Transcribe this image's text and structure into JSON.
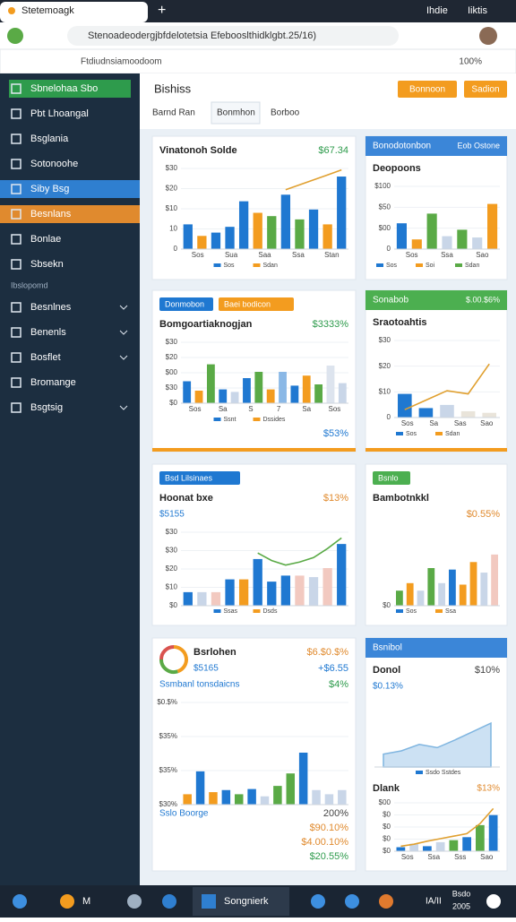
{
  "browser": {
    "tab_title": "Stetemoagk",
    "tab_right": [
      "Ihdie",
      "Iiktis"
    ],
    "address": "Stenoadeodergjbfdelotetsia Efebooslthidklgbt.25/16)",
    "bookmark": "Ftdiudnsiamoodoom",
    "zoom": "100%"
  },
  "sidebar": {
    "groups": [
      {
        "items": [
          {
            "label": "Sbnelohaa Sbo",
            "color": "#2e9b4c"
          },
          {
            "label": "Pbt Lhoangal"
          },
          {
            "label": "Bsglania"
          },
          {
            "label": "Sotonoohe"
          },
          {
            "label": "Siby Bsg",
            "color": "#2f7fd0"
          },
          {
            "label": "Besnlans",
            "color": "#e08a2e"
          },
          {
            "label": "Bonlae"
          },
          {
            "label": "Sbsekn"
          }
        ]
      },
      {
        "label": "Ibslopomd",
        "items": [
          {
            "label": "Besnlnes",
            "expandable": true
          },
          {
            "label": "Benenls",
            "expandable": true
          },
          {
            "label": "Bosflet",
            "expandable": true
          },
          {
            "label": "Bromange"
          },
          {
            "label": "Bsgtsig",
            "expandable": true
          }
        ]
      }
    ]
  },
  "header": {
    "title": "Bishiss",
    "buttons": [
      "Bonnoon",
      "Sadion"
    ],
    "tabs": [
      "Barnd Ran",
      "Bonmhon",
      "Borboo"
    ],
    "active_tab": 1
  },
  "cards": [
    {
      "rows": [
        {
          "text": "Vinatonoh Solde",
          "value": "$67.34",
          "color": "#2e9b4c"
        }
      ],
      "charts": [
        {
          "type": "bar",
          "ylim": [
            0,
            100
          ],
          "values": [
            30,
            16,
            20,
            27,
            58,
            44,
            40,
            66,
            36,
            48,
            30,
            88
          ],
          "colors": [
            "#1f78d1",
            "#f39c1f",
            "#1f78d1",
            "#1f78d1",
            "#1f78d1",
            "#f39c1f",
            "#5aaa46",
            "#1f78d1",
            "#5aaa46",
            "#1f78d1",
            "#f39c1f",
            "#1f78d1"
          ],
          "line": [
            null,
            null,
            null,
            null,
            null,
            null,
            null,
            72,
            78,
            84,
            90,
            96
          ],
          "line_color": "#e0a030",
          "ticks": [
            "$30",
            "$20",
            "$10",
            "10",
            "0"
          ],
          "xlabels": [
            "Sos",
            "Sua",
            "Saa",
            "Ssa",
            "Stan"
          ],
          "legend": [
            "Sos",
            "Sdan"
          ]
        }
      ]
    },
    {
      "header": {
        "text": "Bonodotonbon",
        "right": "Eob Ostone",
        "color": "#3b86d8"
      },
      "rows": [
        {
          "text": "Deopoons"
        }
      ],
      "charts": [
        {
          "type": "bar",
          "ylim": [
            0,
            100
          ],
          "values": [
            40,
            15,
            55,
            20,
            30,
            18,
            70
          ],
          "colors": [
            "#1f78d1",
            "#f39c1f",
            "#5aaa46",
            "#c9d6e8",
            "#5aaa46",
            "#c9d6e8",
            "#f39c1f"
          ],
          "ticks": [
            "$100",
            "$50",
            "$00",
            "0"
          ],
          "xlabels": [
            "Sos",
            "Ssa",
            "Sao"
          ],
          "legend": [
            "Sos",
            "Soi",
            "Sdan"
          ]
        }
      ]
    },
    {
      "chips": [
        {
          "text": "Donmobon",
          "color": "#1f78d1"
        },
        {
          "text": "Baei bodicon",
          "color": "#f39c1f"
        }
      ],
      "rows": [
        {
          "text": "Bomgoartiaknogjan",
          "value": "$3333%",
          "color": "#2e9b4c"
        }
      ],
      "charts": [
        {
          "type": "bar",
          "ylim": [
            0,
            100
          ],
          "values": [
            35,
            20,
            62,
            22,
            18,
            40,
            50,
            22,
            50,
            28,
            44,
            30,
            60,
            32
          ],
          "colors": [
            "#1f78d1",
            "#f39c1f",
            "#5aaa46",
            "#1f78d1",
            "#c9d6e8",
            "#1f78d1",
            "#5aaa46",
            "#f39c1f",
            "#8ab8e6",
            "#1f78d1",
            "#f39c1f",
            "#5aaa46",
            "#dde4ee",
            "#c9d6e8"
          ],
          "ticks": [
            "$30",
            "$20",
            "$00",
            "$30",
            "$0"
          ],
          "xlabels": [
            "Sos",
            "Sa",
            "S",
            "7",
            "Sa",
            "Sos"
          ],
          "legend": [
            "Ssnt",
            "Dssides"
          ]
        }
      ],
      "footer": [
        {
          "text": "",
          "value": "$53%"
        }
      ],
      "accent": "#f39c1f"
    },
    {
      "header": {
        "text": "Sonabob",
        "right": "$.00.$6%",
        "color": "#4caf50"
      },
      "rows": [
        {
          "text": "Sraotoahtis"
        }
      ],
      "charts": [
        {
          "type": "bar",
          "ylim": [
            0,
            100
          ],
          "values": [
            30,
            12,
            16,
            8,
            6
          ],
          "colors": [
            "#1f78d1",
            "#1f78d1",
            "#c9d6e8",
            "#e9e4da",
            "#e9e4da"
          ],
          "line": [
            10,
            22,
            34,
            30,
            68
          ],
          "line_color": "#e0a030",
          "ticks": [
            "$30",
            "$20",
            "$10",
            "0"
          ],
          "xlabels": [
            "Sos",
            "Sa",
            "Sas",
            "Sao"
          ],
          "legend": [
            "Sos",
            "Sdan"
          ]
        }
      ],
      "accent": "#f39c1f"
    },
    {
      "chips": [
        {
          "text": "Bsd Lilsinaes",
          "color": "#1f78d1"
        }
      ],
      "rows": [
        {
          "text": "Hoonat bxe",
          "value": "$13%",
          "color": "#e08a2e"
        },
        {
          "text": "$5155"
        }
      ],
      "charts": [
        {
          "type": "bar",
          "ylim": [
            0,
            100
          ],
          "values": [
            18,
            18,
            18,
            35,
            35,
            62,
            32,
            40,
            40,
            38,
            50,
            82
          ],
          "colors": [
            "#1f78d1",
            "#c9d6e8",
            "#f2c9c0",
            "#1f78d1",
            "#f39c1f",
            "#1f78d1",
            "#1f78d1",
            "#1f78d1",
            "#f2c9c0",
            "#c9d6e8",
            "#f2c9c0",
            "#1f78d1"
          ],
          "line": [
            null,
            null,
            null,
            null,
            null,
            70,
            60,
            54,
            58,
            64,
            76,
            90
          ],
          "line_color": "#5aaa46",
          "ticks": [
            "$30",
            "$30",
            "$20",
            "$10",
            "$0"
          ],
          "legend": [
            "Ssas",
            "Dsds"
          ]
        }
      ]
    },
    {
      "chips": [
        {
          "text": "Bsnlo",
          "color": "#4caf50"
        }
      ],
      "rows": [
        {
          "text": "Bambotnkkl"
        },
        {
          "text": "",
          "value": "$0.55%",
          "color": "#e08a2e"
        }
      ],
      "charts": [
        {
          "type": "bar",
          "ylim": [
            0,
            100
          ],
          "values": [
            20,
            30,
            20,
            50,
            30,
            48,
            28,
            58,
            44,
            68
          ],
          "colors": [
            "#5aaa46",
            "#f39c1f",
            "#c9d6e8",
            "#5aaa46",
            "#c9d6e8",
            "#1f78d1",
            "#f39c1f",
            "#f39c1f",
            "#c9d6e8",
            "#f2c9c0"
          ],
          "ticks": [
            "$0"
          ],
          "legend": [
            "Sos",
            "Ssa"
          ]
        }
      ]
    },
    {
      "donut": {
        "values": [
          45,
          30,
          25
        ],
        "colors": [
          "#f39c1f",
          "#5aaa46",
          "#d9534f"
        ]
      },
      "rows": [
        {
          "text": "Bsrlohen",
          "value": "$6.$0.$%",
          "color": "#e08a2e"
        },
        {
          "text": "$5165",
          "value": "+$6.55",
          "color": "#1f78d1"
        },
        {
          "text": "Ssmbanl tonsdaicns",
          "value": "$4%",
          "color": "#2e9b4c"
        }
      ],
      "charts": [
        {
          "type": "bar",
          "ylim": [
            0,
            100
          ],
          "values": [
            10,
            32,
            12,
            14,
            10,
            15,
            8,
            18,
            30,
            50,
            14,
            10,
            14
          ],
          "colors": [
            "#f39c1f",
            "#1f78d1",
            "#f39c1f",
            "#1f78d1",
            "#5aaa46",
            "#1f78d1",
            "#c9d6e8",
            "#5aaa46",
            "#5aaa46",
            "#1f78d1",
            "#c9d6e8",
            "#c9d6e8",
            "#c9d6e8"
          ],
          "ticks": [
            "$0.$%",
            "$35%",
            "$35%",
            "$30%"
          ]
        }
      ],
      "footer": [
        {
          "text": "Sslo Boorge",
          "value": "200%",
          "color": "#444444"
        },
        {
          "text": "",
          "value": "$90.10%",
          "color": "#e08a2e"
        },
        {
          "text": "",
          "value": "$4.00.10%",
          "color": "#e08a2e"
        },
        {
          "text": "",
          "value": "$20.55%",
          "color": "#2e9b4c"
        }
      ]
    },
    {
      "header": {
        "text": "Bsnibol",
        "color": "#3b86d8"
      },
      "rows": [
        {
          "text": "Donol",
          "value": "$10%",
          "color": "#444444"
        },
        {
          "text": "$0.13%"
        }
      ],
      "charts": [
        {
          "type": "area",
          "ylim": [
            0,
            100
          ],
          "values": [
            20,
            25,
            35,
            30,
            42,
            55,
            68
          ],
          "color": "#7fb5e0",
          "legend": [
            "Ssdo Sstdes"
          ]
        },
        {
          "type": "bar",
          "title": "Dlank",
          "value": "$13%",
          "ylim": [
            0,
            100
          ],
          "values": [
            8,
            15,
            10,
            18,
            22,
            28,
            52,
            72
          ],
          "colors": [
            "#1f78d1",
            "#c9d6e8",
            "#1f78d1",
            "#c9d6e8",
            "#5aaa46",
            "#1f78d1",
            "#5aaa46",
            "#1f78d1"
          ],
          "line": [
            10,
            14,
            20,
            25,
            30,
            35,
            55,
            85
          ],
          "line_color": "#e0a030",
          "ticks": [
            "$00",
            "$0",
            "$0",
            "$0",
            "$0"
          ],
          "xlabels": [
            "Sos",
            "Ssa",
            "Sss",
            "Sao"
          ]
        }
      ]
    }
  ],
  "taskbar": {
    "app": "Songnierk",
    "letter": "M",
    "label": "IA/II",
    "clock": [
      "Bsdo",
      "2005"
    ]
  }
}
